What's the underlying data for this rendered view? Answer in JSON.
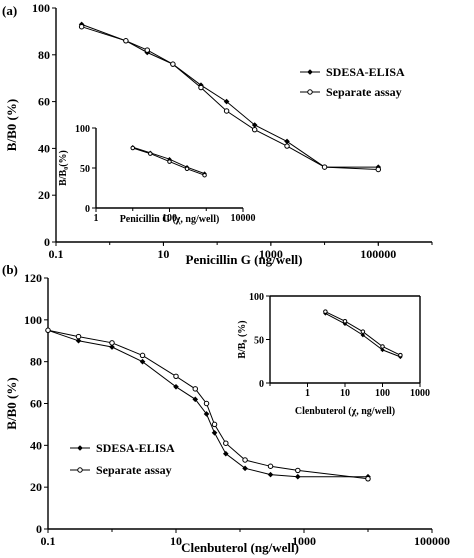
{
  "chart_data": [
    {
      "panel": "(a)",
      "type": "line",
      "xscale": "log",
      "xlim": [
        0.1,
        1000000
      ],
      "ylim": [
        0,
        100
      ],
      "xticks": [
        "0.1",
        "10",
        "1000",
        "100000"
      ],
      "yticks": [
        "0",
        "20",
        "40",
        "60",
        "80",
        "100"
      ],
      "xlabel": "Penicillin G  (ng/well)",
      "ylabel": "B/B0 (%)",
      "legend_position": "right",
      "series": [
        {
          "name": "SDESA-ELISA",
          "marker": "filled-diamond",
          "x": [
            0.3,
            2,
            5,
            15,
            50,
            150,
            500,
            2000,
            10000,
            100000
          ],
          "y": [
            93,
            86,
            81,
            76,
            67,
            60,
            50,
            43,
            32,
            32
          ]
        },
        {
          "name": "Separate assay",
          "marker": "open-circle",
          "x": [
            0.3,
            2,
            5,
            15,
            50,
            150,
            500,
            2000,
            10000,
            100000
          ],
          "y": [
            92,
            86,
            82,
            76,
            66,
            56,
            48,
            41,
            32,
            31
          ]
        }
      ],
      "inset": {
        "xscale": "log",
        "xlim": [
          1,
          10000
        ],
        "ylim": [
          0,
          100
        ],
        "xticks": [
          "1",
          "100",
          "10000"
        ],
        "yticks": [
          "0",
          "50",
          "100"
        ],
        "xlabel": "Penicillin G  (χ, ng/well)",
        "ylabel": "B/B₀(%)",
        "series": [
          {
            "name": "SDESA-ELISA",
            "x": [
              10,
              30,
              100,
              300,
              900
            ],
            "y": [
              76,
              69,
              61,
              51,
              43
            ]
          },
          {
            "name": "Separate assay",
            "x": [
              10,
              30,
              100,
              300,
              900
            ],
            "y": [
              75,
              68,
              58,
              49,
              41
            ]
          }
        ]
      }
    },
    {
      "panel": "(b)",
      "type": "line",
      "xscale": "log",
      "xlim": [
        0.1,
        100000
      ],
      "ylim": [
        0,
        120
      ],
      "xticks": [
        "0.1",
        "10",
        "1000",
        "100000"
      ],
      "yticks": [
        "0",
        "20",
        "40",
        "60",
        "80",
        "100",
        "120"
      ],
      "xlabel": "Clenbuterol (ng/well)",
      "ylabel": "B/B0 (%)",
      "legend_position": "lower-left",
      "series": [
        {
          "name": "SDESA-ELISA",
          "marker": "filled-diamond",
          "x": [
            0.1,
            0.3,
            1,
            3,
            10,
            20,
            30,
            40,
            60,
            120,
            300,
            800,
            10000
          ],
          "y": [
            95,
            90,
            87,
            80,
            68,
            62,
            55,
            46,
            36,
            29,
            26,
            25,
            25
          ]
        },
        {
          "name": "Separate assay",
          "marker": "open-circle",
          "x": [
            0.1,
            0.3,
            1,
            3,
            10,
            20,
            30,
            40,
            60,
            120,
            300,
            800,
            10000
          ],
          "y": [
            95,
            92,
            89,
            83,
            73,
            67,
            60,
            50,
            41,
            33,
            30,
            28,
            24
          ]
        }
      ],
      "inset": {
        "xscale": "log",
        "xlim": [
          0.1,
          1000
        ],
        "ylim": [
          0,
          100
        ],
        "xticks": [
          "1",
          "10",
          "100",
          "1000"
        ],
        "yticks": [
          "0",
          "50",
          "100"
        ],
        "xlabel": "Clenbuterol (χ, ng/well)",
        "ylabel": "B/B₀ (%)",
        "series": [
          {
            "name": "SDESA-ELISA",
            "x": [
              3,
              10,
              30,
              100,
              300
            ],
            "y": [
              80,
              68,
              55,
              38,
              30
            ]
          },
          {
            "name": "Separate assay",
            "x": [
              3,
              10,
              30,
              100,
              300
            ],
            "y": [
              82,
              71,
              59,
              42,
              32
            ]
          }
        ]
      }
    }
  ]
}
